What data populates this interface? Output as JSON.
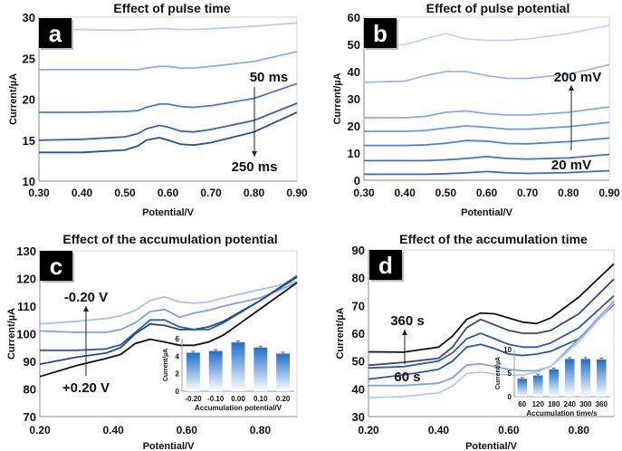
{
  "chart_data": [
    {
      "type": "line",
      "panel_label": "a",
      "title": "Effect of pulse time",
      "xlabel": "Potential/V",
      "ylabel": "Current/µA",
      "xlim": [
        0.3,
        0.9
      ],
      "ylim": [
        10,
        30
      ],
      "xticks": [
        "0.30",
        "0.40",
        "0.50",
        "0.60",
        "0.70",
        "0.80",
        "0.90"
      ],
      "yticks": [
        "10",
        "15",
        "20",
        "25",
        "30"
      ],
      "x": [
        0.3,
        0.4,
        0.5,
        0.53,
        0.55,
        0.58,
        0.6,
        0.63,
        0.66,
        0.7,
        0.8,
        0.9
      ],
      "series": [
        {
          "color": "#b9cdf0",
          "values": [
            28.5,
            28.5,
            28.4,
            28.5,
            28.5,
            28.6,
            28.6,
            28.5,
            28.5,
            28.6,
            28.9,
            29.3
          ]
        },
        {
          "color": "#8eadea",
          "values": [
            23.6,
            23.6,
            23.6,
            23.6,
            23.8,
            24.0,
            24.0,
            23.8,
            23.8,
            24.0,
            24.6,
            25.8
          ]
        },
        {
          "color": "#4a78d0",
          "values": [
            18.4,
            18.4,
            18.5,
            18.6,
            19.0,
            19.4,
            19.4,
            19.1,
            19.0,
            19.2,
            20.1,
            21.9
          ]
        },
        {
          "color": "#3263bd",
          "values": [
            15.0,
            15.1,
            15.4,
            15.8,
            16.4,
            16.8,
            16.6,
            16.1,
            16.0,
            16.3,
            17.4,
            19.5
          ]
        },
        {
          "color": "#25509f",
          "values": [
            13.5,
            13.5,
            13.8,
            14.3,
            15.0,
            15.3,
            15.0,
            14.5,
            14.4,
            14.7,
            16.0,
            18.4
          ]
        }
      ],
      "annotation": {
        "start": "50 ms",
        "end": "250 ms",
        "direction": "down"
      }
    },
    {
      "type": "line",
      "panel_label": "b",
      "title": "Effect of  pulse potential",
      "xlabel": "Potential/V",
      "ylabel": "Current/µA",
      "xlim": [
        0.3,
        0.9
      ],
      "ylim": [
        0,
        60
      ],
      "xticks": [
        "0.30",
        "0.40",
        "0.50",
        "0.60",
        "0.70",
        "0.80",
        "0.90"
      ],
      "yticks": [
        "0",
        "10",
        "20",
        "30",
        "40",
        "50",
        "60"
      ],
      "x": [
        0.3,
        0.4,
        0.45,
        0.5,
        0.55,
        0.6,
        0.65,
        0.7,
        0.8,
        0.9
      ],
      "series": [
        {
          "color": "#c3d5f3",
          "values": [
            49,
            50,
            52,
            54,
            52,
            51.5,
            51.5,
            52,
            54,
            57
          ]
        },
        {
          "color": "#9cb8ec",
          "values": [
            36,
            36.5,
            38.5,
            40,
            40,
            38.5,
            37.5,
            37.5,
            39,
            42.5
          ]
        },
        {
          "color": "#8aaae6",
          "values": [
            23,
            23,
            23.5,
            25,
            25.5,
            24.5,
            24,
            24,
            25,
            27
          ]
        },
        {
          "color": "#6f96e0",
          "values": [
            18,
            18,
            18.3,
            19.2,
            20,
            19.5,
            18.8,
            18.8,
            19.7,
            21.3
          ]
        },
        {
          "color": "#4f7fd6",
          "values": [
            12.8,
            12.8,
            13,
            13.6,
            14.6,
            14.4,
            13.5,
            13.4,
            14.2,
            15.5
          ]
        },
        {
          "color": "#3f6fcc",
          "values": [
            7.2,
            7.2,
            7.2,
            7.5,
            8,
            8.7,
            8,
            7.8,
            8.2,
            9.5
          ]
        },
        {
          "color": "#3a68c8",
          "values": [
            2.2,
            2.2,
            2.2,
            2.4,
            2.7,
            3.2,
            2.7,
            2.5,
            2.8,
            3.5
          ]
        }
      ],
      "annotation": {
        "start": "200 mV",
        "end": "20 mV",
        "direction": "up"
      }
    },
    {
      "type": "line",
      "panel_label": "c",
      "title": "Effect of the accumulation potential",
      "xlabel": "Potential/V",
      "ylabel": "Current/µA",
      "xlim": [
        0.2,
        0.9
      ],
      "ylim": [
        70,
        130
      ],
      "xticks": [
        "0.20",
        "0.40",
        "0.60",
        "0.80"
      ],
      "yticks": [
        "70",
        "80",
        "90",
        "100",
        "110",
        "120",
        "130"
      ],
      "x": [
        0.2,
        0.3,
        0.38,
        0.42,
        0.46,
        0.5,
        0.54,
        0.58,
        0.62,
        0.66,
        0.7,
        0.8,
        0.9
      ],
      "series": [
        {
          "color": "#a9c2ee",
          "values": [
            103.5,
            104.5,
            105.5,
            106.5,
            108.5,
            112,
            113.3,
            111.5,
            111,
            111.5,
            113,
            116,
            119
          ]
        },
        {
          "color": "#7ea2e4",
          "values": [
            101,
            100.5,
            100.5,
            101.5,
            104,
            108,
            108.8,
            106,
            107.5,
            108.5,
            110,
            113,
            118.5
          ]
        },
        {
          "color": "#2c5bb5",
          "values": [
            94,
            94,
            94.5,
            96,
            100.5,
            105,
            105,
            102.5,
            101.5,
            101.5,
            104,
            112,
            121
          ]
        },
        {
          "color": "#24468a",
          "values": [
            89,
            91.5,
            93,
            95,
            100,
            103.5,
            103,
            101.5,
            101.5,
            102.5,
            104.5,
            112,
            120.5
          ]
        },
        {
          "color": "#111111",
          "values": [
            84.5,
            88.5,
            91,
            92.5,
            96.5,
            98,
            97,
            95.8,
            95.8,
            97,
            99.5,
            109,
            118.5
          ]
        }
      ],
      "annotation": {
        "start": "-0.20 V",
        "end": "+0.20 V",
        "direction": "up"
      },
      "inset": {
        "type": "bar",
        "categories": [
          "-0.20",
          "-0.10",
          "0.00",
          "0.10",
          "0.20"
        ],
        "values": [
          4.4,
          4.6,
          5.6,
          5.0,
          4.3
        ],
        "ylim": [
          0,
          6
        ],
        "yticks": [
          "0",
          "2",
          "4",
          "6"
        ],
        "xlabel": "Accumulation  potential/V",
        "ylabel": "Current/µA",
        "color": "#2f7fd1"
      }
    },
    {
      "type": "line",
      "panel_label": "d",
      "title": "Effect of the accumulation time",
      "xlabel": "Potential/V",
      "ylabel": "Current/µA",
      "xlim": [
        0.2,
        0.9
      ],
      "ylim": [
        30,
        90
      ],
      "xticks": [
        "0.20",
        "0.40",
        "0.60",
        "0.80"
      ],
      "yticks": [
        "30",
        "40",
        "50",
        "60",
        "70",
        "80",
        "90"
      ],
      "x": [
        0.2,
        0.3,
        0.4,
        0.44,
        0.48,
        0.52,
        0.56,
        0.6,
        0.64,
        0.68,
        0.72,
        0.8,
        0.9
      ],
      "series": [
        {
          "color": "#111111",
          "values": [
            53.3,
            53.2,
            55,
            59,
            65,
            67.3,
            67,
            65.5,
            64,
            63.5,
            65.5,
            73,
            85
          ]
        },
        {
          "color": "#3a4a6a",
          "values": [
            48.5,
            49.5,
            51,
            55,
            62,
            65,
            63,
            61,
            60,
            60,
            61,
            67,
            79.5
          ]
        },
        {
          "color": "#2c5bb5",
          "values": [
            47.5,
            48,
            50,
            53,
            58,
            60,
            58,
            56,
            55,
            55,
            56.5,
            62,
            73.5
          ]
        },
        {
          "color": "#2a56a8",
          "values": [
            43.5,
            45,
            47,
            50,
            55,
            56,
            54.5,
            52.5,
            52,
            52.5,
            53.5,
            58,
            70.5
          ]
        },
        {
          "color": "#7ea2e4",
          "values": [
            41.2,
            41.2,
            42,
            44,
            48.5,
            49,
            48,
            47,
            46.5,
            46.5,
            48,
            58,
            71.5
          ]
        },
        {
          "color": "#b3c9f0",
          "values": [
            36.8,
            37.2,
            38.5,
            41,
            45.5,
            46,
            45.3,
            45,
            45,
            46,
            48,
            57,
            71
          ]
        }
      ],
      "annotation": {
        "start": "360 s",
        "end": "60 s",
        "direction": "up"
      },
      "inset": {
        "type": "bar",
        "categories": [
          "60",
          "120",
          "180",
          "240",
          "300",
          "360"
        ],
        "values": [
          3.8,
          4.5,
          5.8,
          8.0,
          8.0,
          7.9
        ],
        "ylim": [
          0,
          10
        ],
        "yticks": [
          "0",
          "5",
          "10"
        ],
        "xlabel": "Accumulation  time/s",
        "ylabel": "Current/µA",
        "color": "#2f7fd1"
      }
    }
  ]
}
